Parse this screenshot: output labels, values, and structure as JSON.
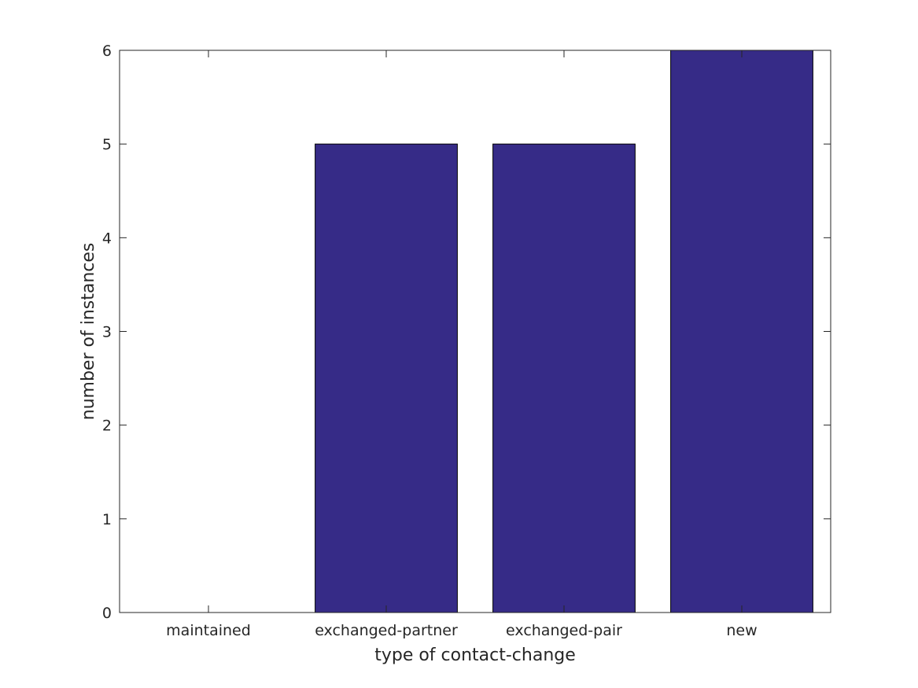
{
  "chart_data": {
    "type": "bar",
    "categories": [
      "maintained",
      "exchanged-partner",
      "exchanged-pair",
      "new"
    ],
    "values": [
      0,
      5,
      5,
      6
    ],
    "title": "",
    "xlabel": "type of contact-change",
    "ylabel": "number of instances",
    "ylim": [
      0,
      6
    ],
    "yticks": [
      0,
      1,
      2,
      3,
      4,
      5,
      6
    ],
    "grid": false,
    "legend": "none",
    "bar_color": "#362B87",
    "bar_edge_color": "#000000"
  }
}
